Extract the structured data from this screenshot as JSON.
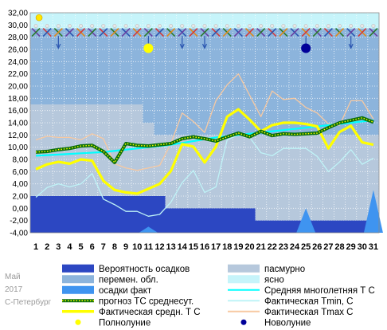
{
  "footer": {
    "month": "Май",
    "year": "2017",
    "city": "С-Петербург"
  },
  "chart_data": {
    "type": "line",
    "title": "",
    "xlabel": "",
    "ylabel": "",
    "x": [
      1,
      2,
      3,
      4,
      5,
      6,
      7,
      8,
      9,
      10,
      11,
      12,
      13,
      14,
      15,
      16,
      17,
      18,
      19,
      20,
      21,
      22,
      23,
      24,
      25,
      26,
      27,
      28,
      29,
      30,
      31
    ],
    "ylim": [
      -4,
      32
    ],
    "yticks": [
      "-4,00",
      "-2,00",
      "0,00",
      "2,00",
      "4,00",
      "6,00",
      "8,00",
      "10,00",
      "12,00",
      "14,00",
      "16,00",
      "18,00",
      "20,00",
      "22,00",
      "24,00",
      "26,00",
      "28,00",
      "30,00",
      "32,00"
    ],
    "grid": true,
    "colors": {
      "precip_prob": "#2c47c2",
      "precip_fact": "#3f94f0",
      "overcast": "#b6c8dc",
      "variable_clouds": "#8cb4dc",
      "clear": "#c6f4fa",
      "normal": "#00ffff",
      "forecast": "#0b6e0b",
      "forecast_dots": "#ffff00",
      "fact_mean": "#ffff00",
      "fact_min": "#bff3f7",
      "fact_max": "#f7c9a2",
      "full_moon": "#ffff00",
      "new_moon": "#000099"
    },
    "series": [
      {
        "name": "Средняя многолетняя Т С",
        "key": "normal",
        "values": [
          8.6,
          8.7,
          8.8,
          8.9,
          9.0,
          9.1,
          9.2,
          9.4,
          9.6,
          9.8,
          10.0,
          10.2,
          10.4,
          10.7,
          11.0,
          11.3,
          11.6,
          11.8,
          12.0,
          12.2,
          12.4,
          12.6,
          12.8,
          13.0,
          13.2,
          13.4,
          13.6,
          13.8,
          14.0,
          14.2,
          14.4
        ]
      },
      {
        "name": "прогноз ТС среднесут.",
        "key": "forecast",
        "values": [
          9.2,
          9.3,
          9.6,
          9.8,
          10.2,
          10.3,
          9.3,
          7.5,
          10.6,
          10.3,
          10.2,
          10.4,
          10.6,
          11.4,
          11.7,
          11.4,
          11.0,
          11.7,
          12.3,
          11.7,
          12.6,
          11.9,
          12.2,
          12.1,
          12.2,
          12.3,
          13.2,
          14.0,
          14.4,
          14.8,
          14.1
        ]
      },
      {
        "name": "Фактическая средн. Т С",
        "key": "fact_mean",
        "values": [
          6.4,
          7.2,
          7.6,
          7.3,
          8.0,
          7.8,
          4.5,
          3.0,
          2.6,
          2.4,
          3.2,
          4.0,
          6.1,
          10.5,
          10.1,
          7.5,
          10.1,
          15.0,
          16.2,
          14.5,
          12.6,
          13.6,
          14.0,
          14.0,
          13.8,
          13.4,
          9.8,
          12.5,
          13.5,
          10.8,
          10.4
        ]
      },
      {
        "name": "Фактическая Tmin, C",
        "key": "fact_min",
        "values": [
          1.8,
          3.4,
          4.0,
          3.5,
          4.0,
          5.7,
          1.5,
          0.6,
          -0.5,
          -0.5,
          -1.3,
          -1.0,
          1.0,
          4.2,
          6.2,
          2.6,
          3.5,
          11.2,
          12.0,
          11.6,
          9.1,
          8.6,
          9.8,
          9.8,
          9.8,
          8.5,
          6.0,
          7.6,
          9.6,
          7.2,
          8.2
        ]
      },
      {
        "name": "Фактическая Tmax C",
        "key": "fact_max",
        "values": [
          11.2,
          11.8,
          11.6,
          11.6,
          11.2,
          12.2,
          11.4,
          7.3,
          6.6,
          6.2,
          6.6,
          7.0,
          10.6,
          15.6,
          14.2,
          12.4,
          17.6,
          20.2,
          22.0,
          18.5,
          15.0,
          19.2,
          17.8,
          18.0,
          16.5,
          15.6,
          13.8,
          13.6,
          17.6,
          17.6,
          14.6
        ]
      },
      {
        "name": "Вероятность осадков",
        "key": "precip_prob",
        "values": [
          2.0,
          2.0,
          2.0,
          2.0,
          2.0,
          2.0,
          2.0,
          2.0,
          2.0,
          2.0,
          2.0,
          2.0,
          0.0,
          0.0,
          0.0,
          0.0,
          0.0,
          0.0,
          0.0,
          0.0,
          -2.0,
          -2.0,
          -2.0,
          -2.0,
          -2.0,
          -2.0,
          -2.0,
          -2.0,
          -2.0,
          -2.0,
          -2.0
        ]
      },
      {
        "name": "осадки факт",
        "key": "precip_fact",
        "values": [
          -4,
          -4,
          -4,
          -4,
          -4,
          -4,
          -4,
          -4,
          -4,
          -4,
          -3.0,
          -4,
          -4,
          -4,
          -4,
          -4,
          -4,
          -4,
          -4,
          -4,
          -4,
          -4,
          -4,
          -4,
          0.0,
          -4,
          -4,
          -4,
          -4,
          -4,
          3.0
        ]
      }
    ],
    "cloud_band": {
      "overcast_top": [
        17.0,
        17.0,
        17.0,
        17.0,
        17.0,
        17.0,
        17.0,
        17.0,
        17.0,
        17.0,
        14.0,
        12.0,
        12.0,
        12.0,
        12.0,
        12.0,
        12.0,
        12.0,
        12.0,
        12.0,
        12.0,
        12.0,
        12.0,
        12.0,
        12.0,
        12.0,
        12.0,
        12.0,
        12.0,
        12.0,
        12.0
      ],
      "variable_top": 29.4
    },
    "moon_phases": [
      {
        "name": "Полнолуние",
        "day": 11,
        "y": 26.2,
        "key": "full_moon"
      },
      {
        "name": "Новолуние",
        "day": 25,
        "y": 26.2,
        "key": "new_moon"
      }
    ],
    "legend": [
      {
        "label": "Вероятность осадков",
        "key": "precip_prob",
        "style": "box"
      },
      {
        "label": "пасмурно",
        "key": "overcast",
        "style": "box"
      },
      {
        "label": "перемен. обл.",
        "key": "variable_clouds",
        "style": "box"
      },
      {
        "label": "ясно",
        "key": "clear",
        "style": "box"
      },
      {
        "label": "осадки факт",
        "key": "precip_fact",
        "style": "box"
      },
      {
        "label": "Средняя многолетняя Т С",
        "key": "normal",
        "style": "line"
      },
      {
        "label": "прогноз ТС среднесут.",
        "key": "forecast",
        "style": "dotted"
      },
      {
        "label": "Фактическая Tmin, C",
        "key": "fact_min",
        "style": "line"
      },
      {
        "label": "Фактическая средн. Т С",
        "key": "fact_mean",
        "style": "thick"
      },
      {
        "label": "Фактическая Tmax C",
        "key": "fact_max",
        "style": "line"
      },
      {
        "label": "Полнолуние",
        "key": "full_moon",
        "style": "dot"
      },
      {
        "label": "Новолуние",
        "key": "new_moon",
        "style": "dot"
      }
    ]
  }
}
